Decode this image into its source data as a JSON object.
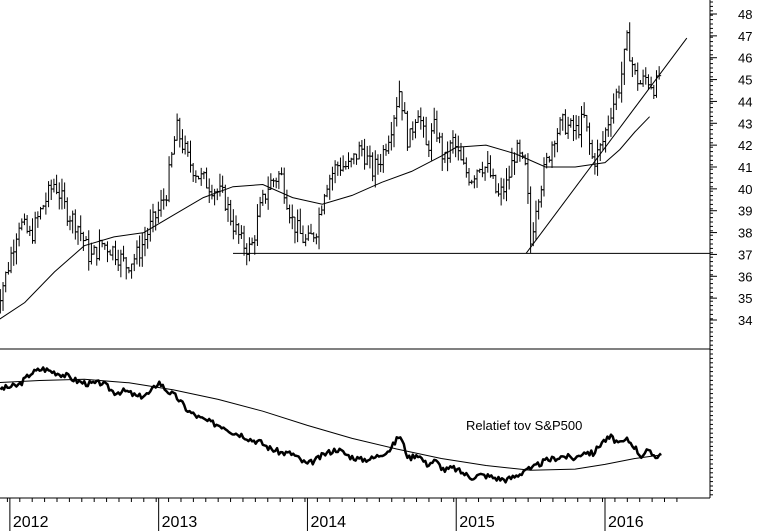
{
  "chart_data": {
    "type": "bar",
    "subtype": "ohlc-weekly",
    "title": "",
    "xlabel": "",
    "ylabel": "",
    "ylim": [
      33,
      48.5
    ],
    "y_ticks": [
      34,
      35,
      36,
      37,
      38,
      39,
      40,
      41,
      42,
      43,
      44,
      45,
      46,
      47,
      48
    ],
    "y_tick_labels": [
      "34",
      "35",
      "36",
      "37",
      "38",
      "39",
      "40",
      "41",
      "42",
      "43",
      "44",
      "45",
      "46",
      "47",
      "48"
    ],
    "x_ticks": [
      2012.0,
      2013.0,
      2014.0,
      2015.0,
      2016.0
    ],
    "x_tick_labels": [
      "2012",
      "2013",
      "2014",
      "2015",
      "2016"
    ],
    "xlim": [
      2011.9,
      2016.55
    ],
    "grid": false,
    "price": {
      "x": [
        2011.9,
        2011.98,
        2012.06,
        2012.14,
        2012.22,
        2012.3,
        2012.38,
        2012.46,
        2012.54,
        2012.62,
        2012.7,
        2012.78,
        2012.86,
        2012.94,
        2013.0,
        2013.05,
        2013.12,
        2013.2,
        2013.28,
        2013.36,
        2013.44,
        2013.5,
        2013.56,
        2013.62,
        2013.68,
        2013.74,
        2013.82,
        2013.9,
        2013.96,
        2014.0,
        2014.06,
        2014.12,
        2014.2,
        2014.28,
        2014.36,
        2014.44,
        2014.5,
        2014.56,
        2014.62,
        2014.68,
        2014.74,
        2014.8,
        2014.86,
        2014.92,
        2014.98,
        2015.04,
        2015.1,
        2015.16,
        2015.22,
        2015.28,
        2015.34,
        2015.4,
        2015.44,
        2015.47,
        2015.5,
        2015.54,
        2015.6,
        2015.66,
        2015.72,
        2015.8,
        2015.86,
        2015.92,
        2015.98,
        2016.04,
        2016.1,
        2016.15,
        2016.2,
        2016.24,
        2016.28,
        2016.34,
        2016.38
      ],
      "close": [
        34.5,
        36.2,
        38.5,
        37.8,
        39.2,
        40.3,
        39.0,
        38.3,
        36.8,
        37.5,
        37.2,
        36.5,
        37.0,
        38.2,
        39.0,
        39.8,
        42.8,
        41.3,
        40.5,
        40.1,
        39.6,
        38.4,
        37.5,
        37.2,
        39.0,
        40.2,
        40.7,
        38.5,
        37.8,
        37.5,
        38.2,
        40.2,
        41.1,
        41.0,
        41.9,
        40.8,
        41.5,
        42.8,
        44.6,
        42.0,
        43.8,
        41.8,
        42.9,
        41.2,
        42.2,
        41.0,
        40.5,
        41.2,
        40.8,
        39.6,
        40.2,
        41.8,
        41.2,
        40.8,
        37.5,
        39.5,
        41.0,
        42.5,
        43.0,
        42.6,
        43.2,
        41.2,
        42.0,
        43.6,
        44.8,
        46.8,
        45.2,
        44.8,
        45.1,
        44.6,
        45.6
      ],
      "ma_x": [
        2011.9,
        2012.1,
        2012.3,
        2012.5,
        2012.7,
        2012.9,
        2013.1,
        2013.3,
        2013.5,
        2013.7,
        2013.9,
        2014.1,
        2014.3,
        2014.5,
        2014.7,
        2014.9,
        2015.0,
        2015.2,
        2015.4,
        2015.6,
        2015.8,
        2016.0,
        2016.1,
        2016.2,
        2016.3
      ],
      "ma": [
        33.9,
        34.8,
        36.2,
        37.4,
        37.8,
        38.0,
        38.8,
        39.6,
        40.1,
        40.2,
        39.6,
        39.3,
        39.7,
        40.3,
        40.8,
        41.5,
        41.9,
        42.0,
        41.6,
        41.0,
        41.0,
        41.2,
        41.8,
        42.6,
        43.3
      ]
    },
    "support_level": 37.05,
    "trendline": [
      [
        2015.47,
        37.05
      ],
      [
        2016.55,
        46.9
      ]
    ],
    "relative": {
      "label": "Relatief tov S&P500",
      "x": [
        2011.9,
        2011.98,
        2012.06,
        2012.14,
        2012.22,
        2012.3,
        2012.38,
        2012.46,
        2012.54,
        2012.62,
        2012.7,
        2012.78,
        2012.86,
        2012.94,
        2013.0,
        2013.05,
        2013.12,
        2013.2,
        2013.28,
        2013.36,
        2013.44,
        2013.5,
        2013.56,
        2013.62,
        2013.68,
        2013.74,
        2013.82,
        2013.9,
        2013.96,
        2014.0,
        2014.06,
        2014.12,
        2014.2,
        2014.28,
        2014.36,
        2014.44,
        2014.5,
        2014.56,
        2014.62,
        2014.68,
        2014.74,
        2014.8,
        2014.86,
        2014.92,
        2014.98,
        2015.04,
        2015.1,
        2015.16,
        2015.22,
        2015.28,
        2015.34,
        2015.4,
        2015.44,
        2015.47,
        2015.5,
        2015.54,
        2015.6,
        2015.66,
        2015.72,
        2015.8,
        2015.86,
        2015.92,
        2015.98,
        2016.04,
        2016.1,
        2016.15,
        2016.2,
        2016.24,
        2016.28,
        2016.34,
        2016.38
      ],
      "values": [
        0.78,
        0.8,
        0.82,
        0.92,
        0.96,
        0.93,
        0.9,
        0.85,
        0.83,
        0.84,
        0.76,
        0.77,
        0.72,
        0.75,
        0.85,
        0.78,
        0.72,
        0.6,
        0.54,
        0.5,
        0.47,
        0.42,
        0.4,
        0.36,
        0.34,
        0.29,
        0.25,
        0.24,
        0.18,
        0.15,
        0.19,
        0.24,
        0.28,
        0.22,
        0.19,
        0.2,
        0.24,
        0.28,
        0.4,
        0.2,
        0.24,
        0.15,
        0.18,
        0.1,
        0.12,
        0.08,
        0.04,
        0.06,
        0.05,
        0.03,
        0.02,
        0.05,
        0.08,
        0.12,
        0.1,
        0.14,
        0.18,
        0.2,
        0.22,
        0.2,
        0.26,
        0.24,
        0.34,
        0.38,
        0.32,
        0.36,
        0.3,
        0.22,
        0.26,
        0.22,
        0.24
      ],
      "ma_x": [
        2011.9,
        2012.2,
        2012.5,
        2012.8,
        2013.1,
        2013.4,
        2013.7,
        2014.0,
        2014.3,
        2014.6,
        2014.9,
        2015.2,
        2015.5,
        2015.8,
        2016.0,
        2016.2,
        2016.38
      ],
      "ma": [
        0.84,
        0.86,
        0.87,
        0.84,
        0.78,
        0.7,
        0.6,
        0.48,
        0.37,
        0.28,
        0.2,
        0.14,
        0.1,
        0.11,
        0.15,
        0.2,
        0.23
      ],
      "ylim": [
        -0.05,
        1.05
      ]
    }
  }
}
